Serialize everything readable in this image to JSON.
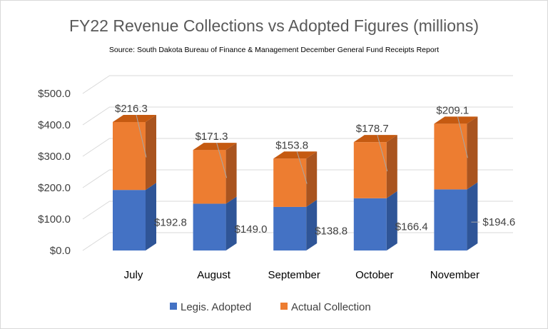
{
  "chart_data": {
    "type": "bar",
    "stacked": true,
    "style": "3d-column",
    "title": "FY22 Revenue Collections vs Adopted Figures (millions)",
    "subtitle": "Source: South Dakota Bureau of Finance & Management December General Fund Receipts Report",
    "categories": [
      "July",
      "August",
      "September",
      "October",
      "November"
    ],
    "series": [
      {
        "name": "Legis. Adopted",
        "values": [
          192.8,
          149.0,
          138.8,
          166.4,
          194.6
        ],
        "labels": [
          "$192.8",
          "$149.0",
          "$138.8",
          "$166.4",
          "$194.6"
        ],
        "color": "#4472c4",
        "side_color": "#2f5597",
        "top_color": "#5b7fc9"
      },
      {
        "name": "Actual Collection",
        "values": [
          216.3,
          171.3,
          153.8,
          178.7,
          209.1
        ],
        "labels": [
          "$216.3",
          "$171.3",
          "$153.8",
          "$178.7",
          "$209.1"
        ],
        "color": "#ed7d31",
        "side_color": "#a9541f",
        "top_color": "#c55a11"
      }
    ],
    "y_ticks": [
      "$0.0",
      "$100.0",
      "$200.0",
      "$300.0",
      "$400.0",
      "$500.0"
    ],
    "ylim": [
      0,
      500
    ],
    "xlabel": "",
    "ylabel": "",
    "grid": true,
    "legend_position": "bottom"
  }
}
